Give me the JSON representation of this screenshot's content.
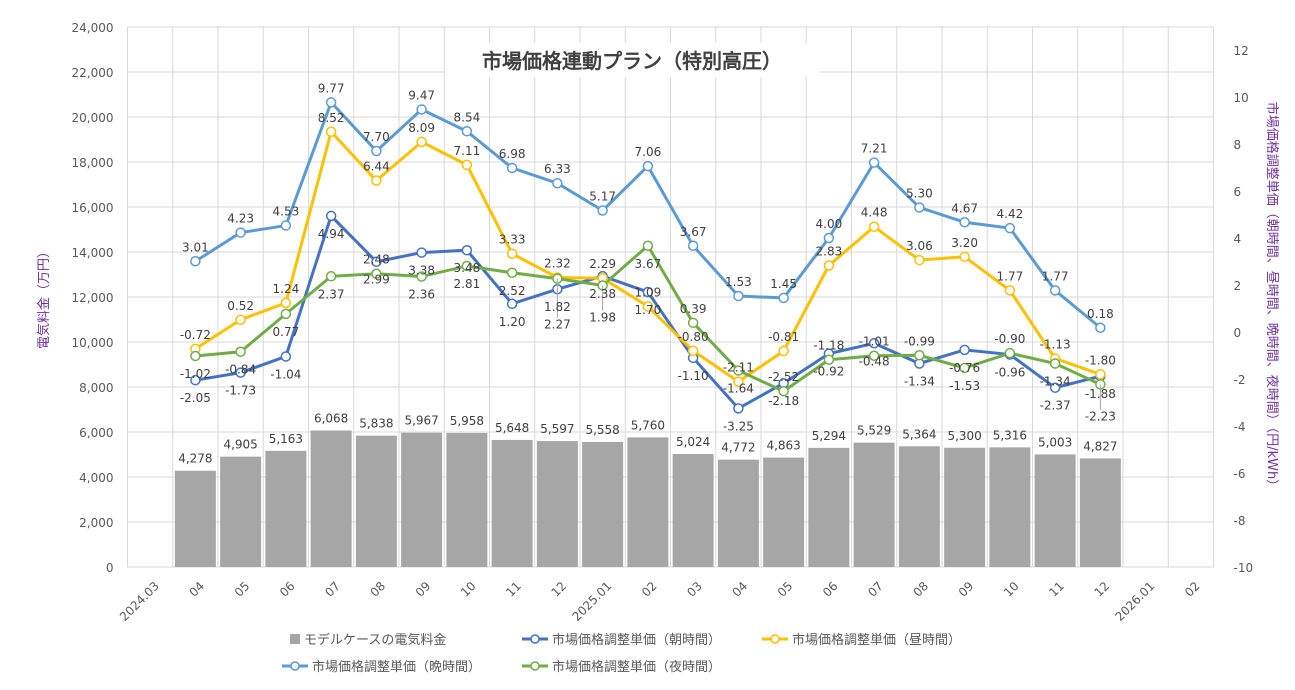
{
  "chart_data": {
    "type": "bar+line",
    "title": "市場価格連動プラン（特別高圧）",
    "ylabel_left": "電気料金（万円）",
    "ylabel_right": "市場価格調整単価（朝時間、昼時間、晩時間、夜時間）（円/kWh）",
    "ylim_left": [
      0,
      24000
    ],
    "ylim_right": [
      -10,
      12
    ],
    "yticks_left": [
      "0",
      "2,000",
      "4,000",
      "6,000",
      "8,000",
      "10,000",
      "12,000",
      "14,000",
      "16,000",
      "18,000",
      "20,000",
      "22,000",
      "24,000"
    ],
    "yticks_right": [
      "-10",
      "-8",
      "-6",
      "-4",
      "-2",
      "0",
      "2",
      "4",
      "6",
      "8",
      "10",
      "12"
    ],
    "categories": [
      "2024.03",
      "04",
      "05",
      "06",
      "07",
      "08",
      "09",
      "10",
      "11",
      "12",
      "2025.01",
      "02",
      "03",
      "04",
      "05",
      "06",
      "07",
      "08",
      "09",
      "10",
      "11",
      "12",
      "2026.01",
      "02"
    ],
    "grid": true,
    "legend_placement": "bottom",
    "bars": {
      "name": "モデルケースの電気料金",
      "color": "#a6a6a6",
      "values": [
        null,
        4278,
        4905,
        5163,
        6068,
        5838,
        5967,
        5958,
        5648,
        5597,
        5558,
        5760,
        5024,
        4772,
        4863,
        5294,
        5529,
        5364,
        5300,
        5316,
        5003,
        4827,
        null,
        null
      ],
      "labels": [
        null,
        "4,278",
        "4,905",
        "5,163",
        "6,068",
        "5,838",
        "5,967",
        "5,958",
        "5,648",
        "5,597",
        "5,558",
        "5,760",
        "5,024",
        "4,772",
        "4,863",
        "5,294",
        "5,529",
        "5,364",
        "5,300",
        "5,316",
        "5,003",
        "4,827",
        null,
        null
      ]
    },
    "series": [
      {
        "name": "市場価格調整単価（朝時間）",
        "color": "#4472c4",
        "label_pos": "below",
        "values": [
          null,
          -2.05,
          -1.73,
          -1.04,
          4.94,
          2.99,
          3.38,
          3.48,
          1.2,
          1.82,
          2.38,
          1.7,
          -1.1,
          -3.25,
          -2.18,
          -0.92,
          -0.48,
          -1.34,
          -0.76,
          -0.96,
          -2.37,
          -1.88,
          null,
          null
        ]
      },
      {
        "name": "市場価格調整単価（昼時間）",
        "color": "#ffc000",
        "label_pos": "above",
        "values": [
          null,
          -0.72,
          0.52,
          1.24,
          8.52,
          6.44,
          8.09,
          7.11,
          3.33,
          2.32,
          2.29,
          1.09,
          -0.8,
          -2.11,
          -0.81,
          2.83,
          4.48,
          3.06,
          3.2,
          1.77,
          -1.13,
          -1.8,
          null,
          null
        ]
      },
      {
        "name": "市場価格調整単価（晩時間）",
        "color": "#5b9bd5",
        "label_pos": "above",
        "values": [
          null,
          3.01,
          4.23,
          4.53,
          9.77,
          7.7,
          9.47,
          8.54,
          6.98,
          6.33,
          5.17,
          7.06,
          3.67,
          1.53,
          1.45,
          4.0,
          7.21,
          5.3,
          4.67,
          4.42,
          1.77,
          0.18,
          null,
          null
        ]
      },
      {
        "name": "市場価格調整単価（夜時間）",
        "color": "#70ad47",
        "label_pos": "below",
        "values": [
          null,
          -1.02,
          -0.84,
          0.77,
          2.37,
          2.48,
          2.36,
          2.81,
          2.52,
          2.27,
          1.98,
          3.67,
          0.39,
          -1.64,
          -2.52,
          -1.18,
          -1.01,
          -0.99,
          -1.53,
          -0.9,
          -1.34,
          -2.23,
          null,
          null
        ]
      }
    ]
  }
}
